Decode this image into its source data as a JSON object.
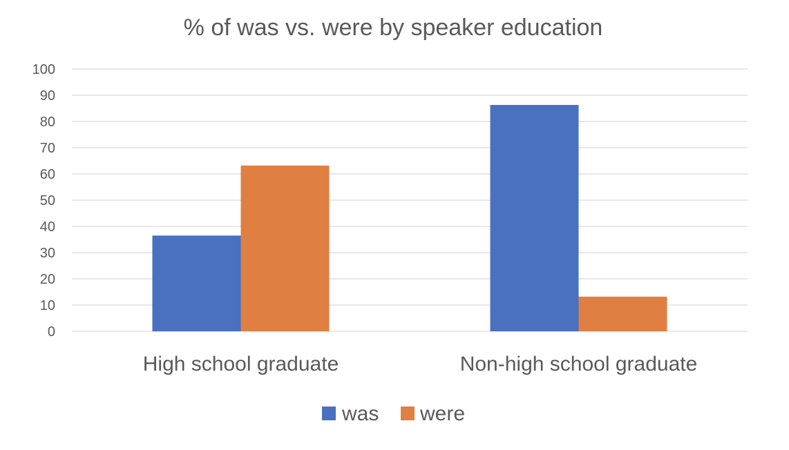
{
  "colors": {
    "was": "#4a70c0",
    "were": "#e07f42",
    "text": "#595959",
    "grid": "#d9d9d9"
  },
  "chart_data": {
    "type": "bar",
    "title": "% of was vs. were by speaker education",
    "xlabel": "",
    "ylabel": "",
    "categories": [
      "High school graduate",
      "Non-high school graduate"
    ],
    "series": [
      {
        "name": "was",
        "values": [
          36.5,
          86.3
        ]
      },
      {
        "name": "were",
        "values": [
          63.2,
          13.2
        ]
      }
    ],
    "ylim": [
      0,
      100
    ],
    "yticks": [
      0,
      10,
      20,
      30,
      40,
      50,
      60,
      70,
      80,
      90,
      100
    ],
    "grid": true,
    "legend": "bottom"
  }
}
